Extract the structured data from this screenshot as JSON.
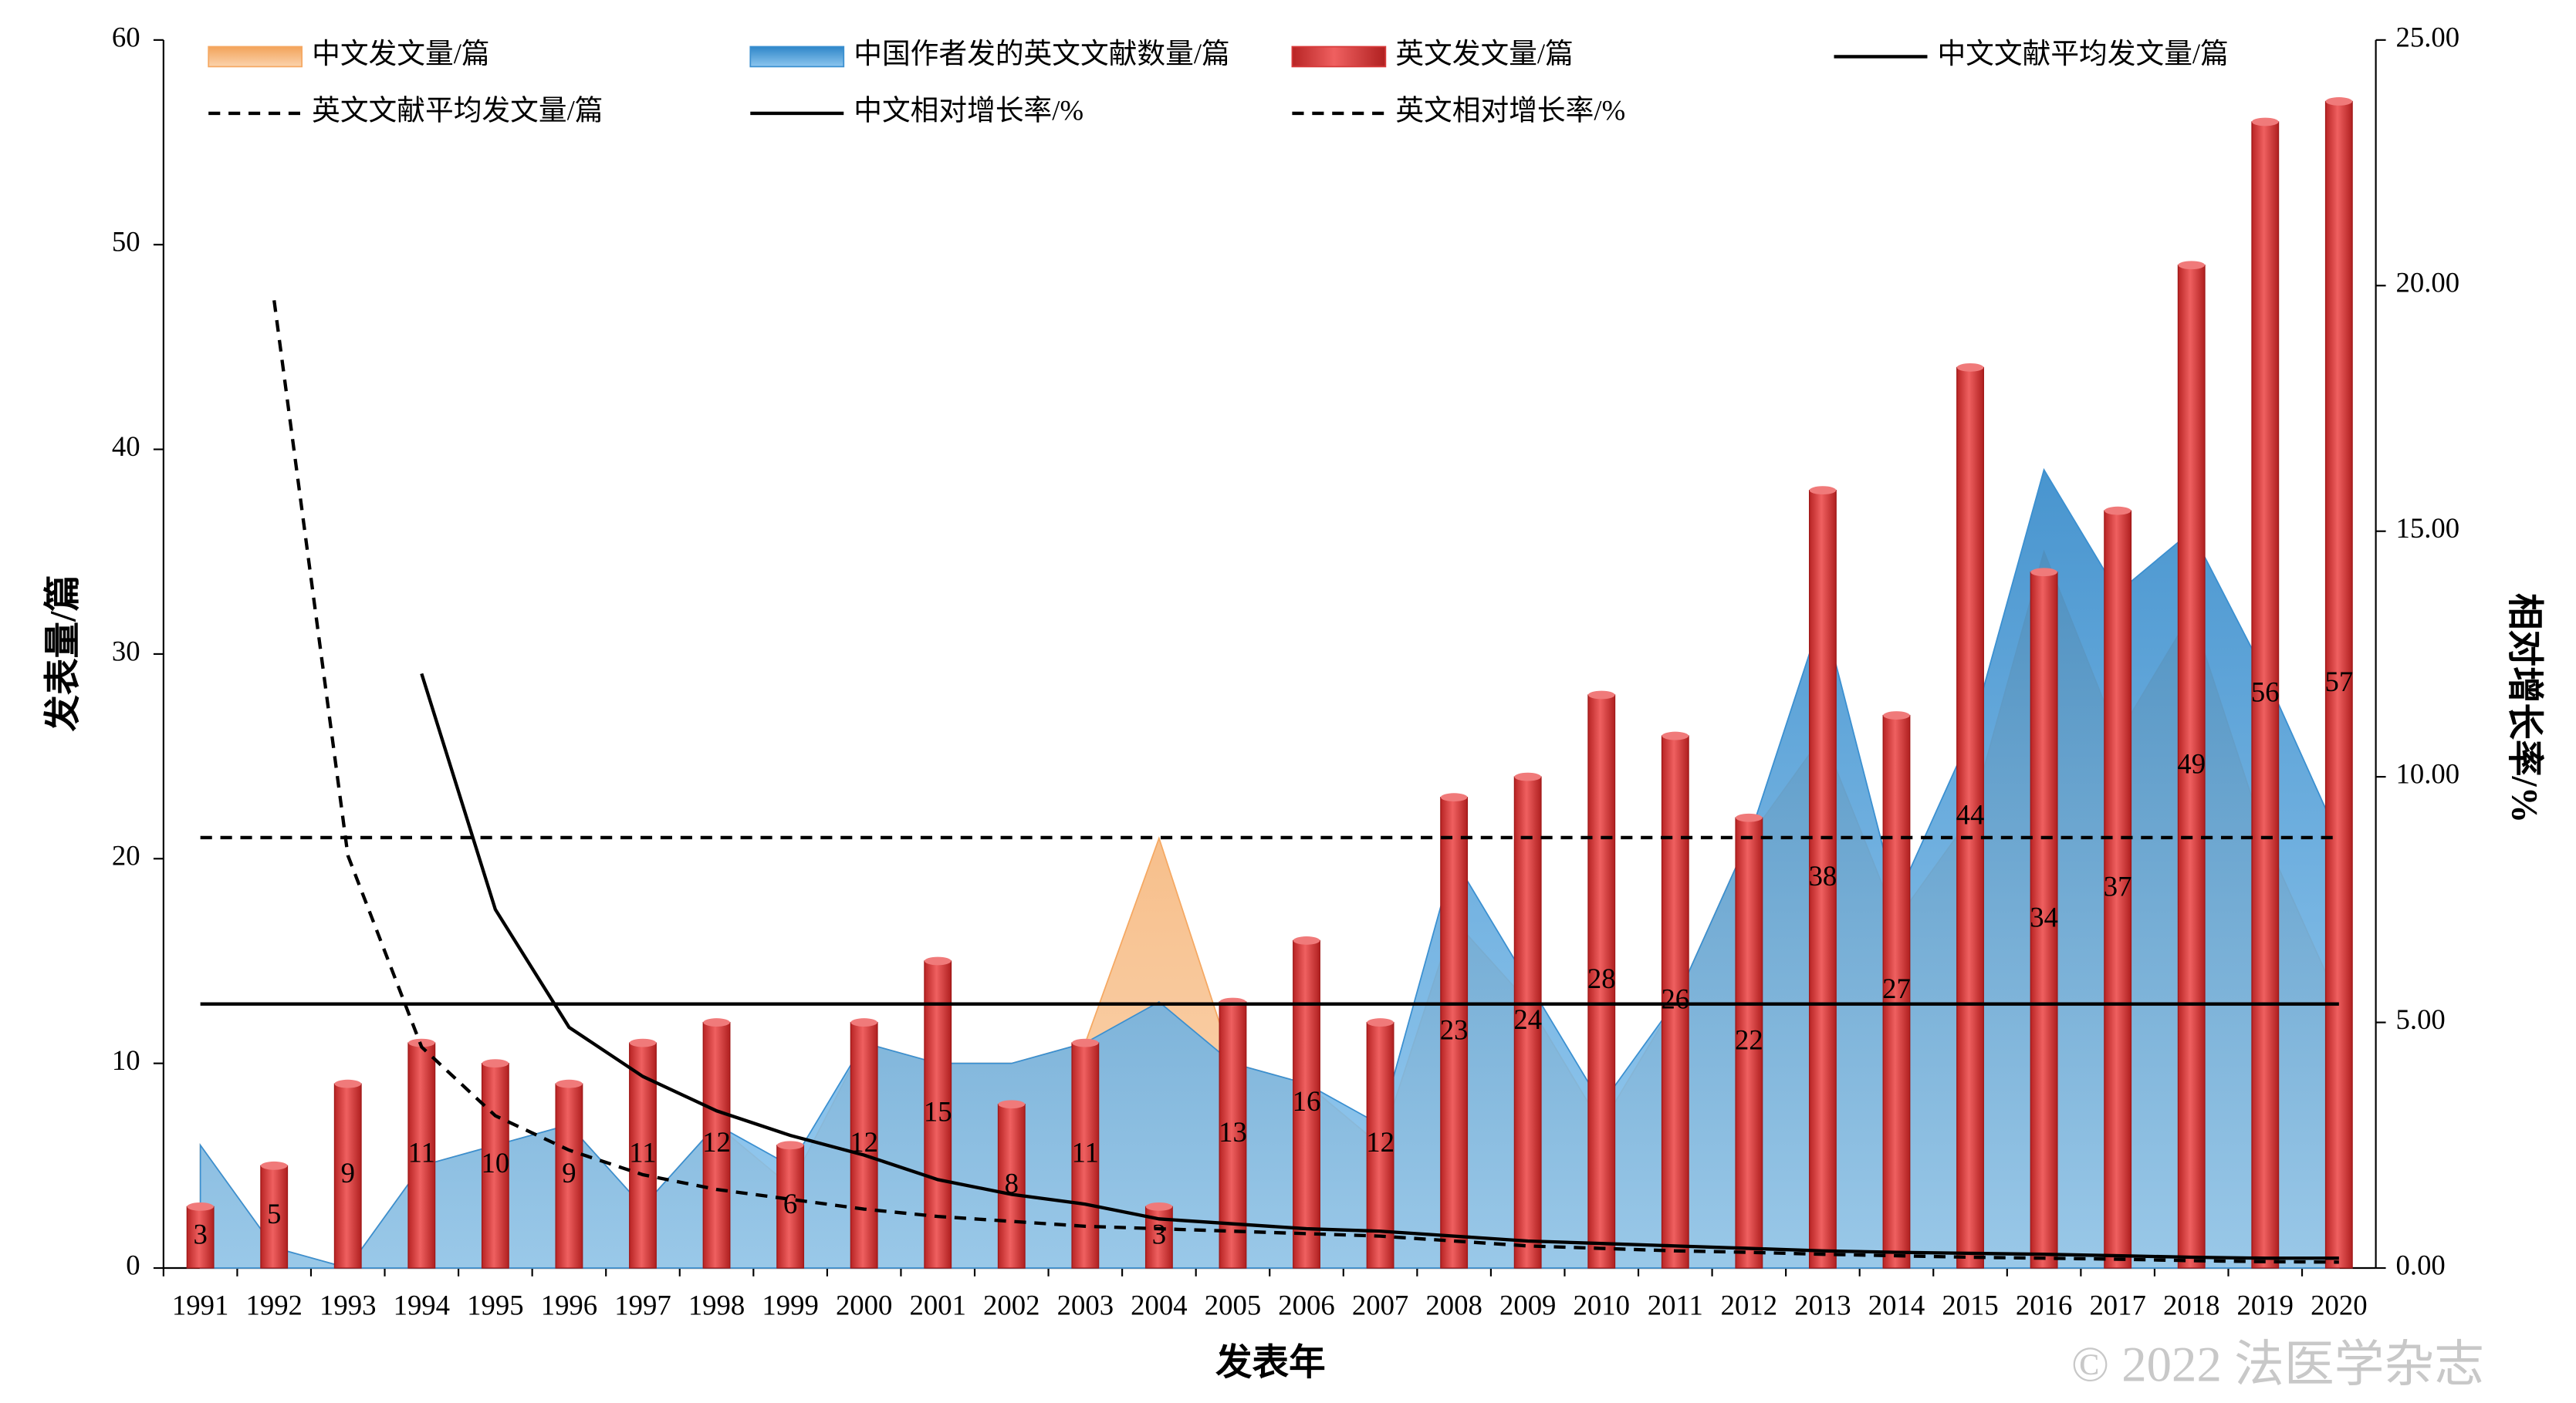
{
  "chart_data": {
    "type": "combo",
    "x_label": "发表年",
    "y_label": "发表量/篇",
    "y2_label": "相对增长率/%",
    "watermark": "© 2022 法医学杂志",
    "categories": [
      "1991",
      "1992",
      "1993",
      "1994",
      "1995",
      "1996",
      "1997",
      "1998",
      "1999",
      "2000",
      "2001",
      "2002",
      "2003",
      "2004",
      "2005",
      "2006",
      "2007",
      "2008",
      "2009",
      "2010",
      "2011",
      "2012",
      "2013",
      "2014",
      "2015",
      "2016",
      "2017",
      "2018",
      "2019",
      "2020"
    ],
    "ylim": [
      0,
      60
    ],
    "yticks": [
      0,
      10,
      20,
      30,
      40,
      50,
      60
    ],
    "y2lim": [
      0,
      25
    ],
    "y2ticks": [
      {
        "value": 0,
        "label": "0.00"
      },
      {
        "value": 5,
        "label": "5.00"
      },
      {
        "value": 10,
        "label": "10.00"
      },
      {
        "value": 15,
        "label": "15.00"
      },
      {
        "value": 20,
        "label": "20.00"
      },
      {
        "value": 25,
        "label": "25.00"
      }
    ],
    "series": [
      {
        "name": "中文发文量/篇",
        "kind": "area",
        "color": "#f5a862",
        "values": [
          6,
          1,
          0,
          5,
          6,
          7,
          3,
          7,
          4,
          11,
          10,
          10,
          11,
          21,
          10,
          9,
          6,
          17,
          13,
          7,
          13,
          21,
          26,
          17,
          22,
          35,
          26,
          32,
          21,
          13
        ]
      },
      {
        "name": "中国作者发的英文文献数量/篇",
        "kind": "area",
        "color": "#3a8fd0",
        "values": [
          6,
          1,
          0,
          5,
          6,
          7,
          3,
          7,
          5,
          11,
          10,
          10,
          11,
          13,
          10,
          9,
          7,
          20,
          14,
          8,
          13,
          21,
          32,
          18,
          26,
          39,
          33,
          36,
          29,
          21
        ]
      },
      {
        "name": "英文发文量/篇",
        "kind": "bar",
        "color": "#d83a3a",
        "labels": true,
        "values": [
          3,
          5,
          9,
          11,
          10,
          9,
          11,
          12,
          6,
          12,
          15,
          8,
          11,
          3,
          13,
          16,
          12,
          23,
          24,
          28,
          26,
          22,
          38,
          27,
          44,
          34,
          37,
          49,
          56,
          57
        ]
      },
      {
        "name": "中文文献平均发文量/篇",
        "kind": "hline",
        "color": "#000000",
        "dash": false,
        "value": 12.9
      },
      {
        "name": "英文文献平均发文量/篇",
        "kind": "hline",
        "color": "#000000",
        "dash": true,
        "value": 21.03
      },
      {
        "name": "中文相对增长率/%",
        "kind": "line",
        "axis": "y2",
        "color": "#000000",
        "dash": false,
        "values": [
          null,
          null,
          null,
          12.1,
          7.3,
          4.9,
          3.9,
          3.2,
          2.7,
          2.3,
          1.8,
          1.5,
          1.3,
          1.0,
          0.9,
          0.8,
          0.75,
          0.65,
          0.55,
          0.5,
          0.45,
          0.4,
          0.35,
          0.32,
          0.3,
          0.28,
          0.25,
          0.22,
          0.2,
          0.2
        ]
      },
      {
        "name": "英文相对增长率/%",
        "kind": "line",
        "axis": "y2",
        "color": "#000000",
        "dash": true,
        "values": [
          null,
          19.7,
          8.4,
          4.5,
          3.1,
          2.4,
          1.9,
          1.6,
          1.4,
          1.2,
          1.05,
          0.95,
          0.85,
          0.8,
          0.75,
          0.7,
          0.65,
          0.55,
          0.45,
          0.4,
          0.35,
          0.32,
          0.28,
          0.25,
          0.22,
          0.2,
          0.18,
          0.15,
          0.13,
          0.12
        ]
      }
    ]
  }
}
